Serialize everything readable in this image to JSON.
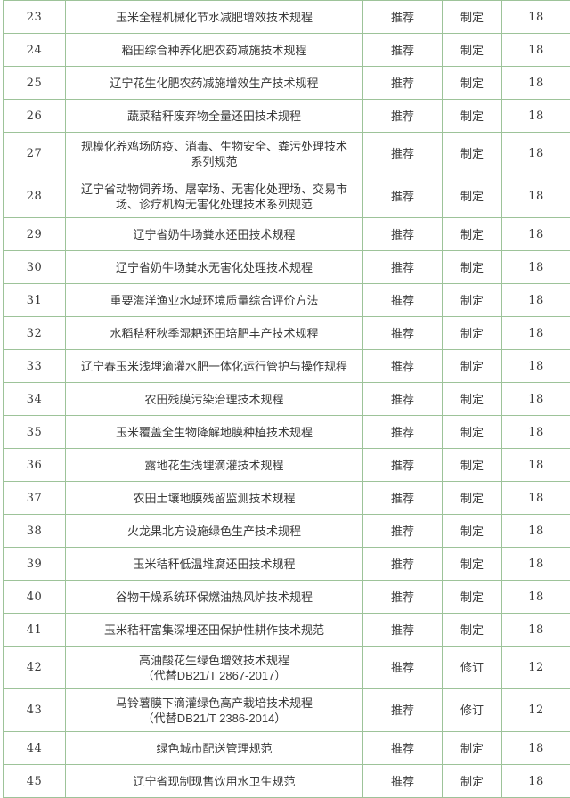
{
  "colors": {
    "border": "#9dc399",
    "text": "#3a3a3a",
    "background": "#ffffff",
    "cell_background": "#ffffff"
  },
  "table": {
    "rows": [
      {
        "index": "23",
        "title": "玉米全程机械化节水减肥增效技术规程",
        "attribute": "推荐",
        "type": "制定",
        "cycle": "18",
        "lines": 1
      },
      {
        "index": "24",
        "title": "稻田综合种养化肥农药减施技术规程",
        "attribute": "推荐",
        "type": "制定",
        "cycle": "18",
        "lines": 1
      },
      {
        "index": "25",
        "title": "辽宁花生化肥农药减施增效生产技术规程",
        "attribute": "推荐",
        "type": "制定",
        "cycle": "18",
        "lines": 1
      },
      {
        "index": "26",
        "title": "蔬菜秸秆废弃物全量还田技术规程",
        "attribute": "推荐",
        "type": "制定",
        "cycle": "18",
        "lines": 1
      },
      {
        "index": "27",
        "title": "规模化养鸡场防疫、消毒、生物安全、粪污处理技术\n系列规范",
        "attribute": "推荐",
        "type": "制定",
        "cycle": "18",
        "lines": 2
      },
      {
        "index": "28",
        "title": "辽宁省动物饲养场、屠宰场、无害化处理场、交易市\n场、诊疗机构无害化处理技术系列规范",
        "attribute": "推荐",
        "type": "制定",
        "cycle": "18",
        "lines": 2
      },
      {
        "index": "29",
        "title": "辽宁省奶牛场粪水还田技术规程",
        "attribute": "推荐",
        "type": "制定",
        "cycle": "18",
        "lines": 1
      },
      {
        "index": "30",
        "title": "辽宁省奶牛场粪水无害化处理技术规程",
        "attribute": "推荐",
        "type": "制定",
        "cycle": "18",
        "lines": 1
      },
      {
        "index": "31",
        "title": "重要海洋渔业水域环境质量综合评价方法",
        "attribute": "推荐",
        "type": "制定",
        "cycle": "18",
        "lines": 1
      },
      {
        "index": "32",
        "title": "水稻秸秆秋季湿耙还田培肥丰产技术规程",
        "attribute": "推荐",
        "type": "制定",
        "cycle": "18",
        "lines": 1
      },
      {
        "index": "33",
        "title": "辽宁春玉米浅埋滴灌水肥一体化运行管护与操作规程",
        "attribute": "推荐",
        "type": "制定",
        "cycle": "18",
        "lines": 1
      },
      {
        "index": "34",
        "title": "农田残膜污染治理技术规程",
        "attribute": "推荐",
        "type": "制定",
        "cycle": "18",
        "lines": 1
      },
      {
        "index": "35",
        "title": "玉米覆盖全生物降解地膜种植技术规程",
        "attribute": "推荐",
        "type": "制定",
        "cycle": "18",
        "lines": 1
      },
      {
        "index": "36",
        "title": "露地花生浅埋滴灌技术规程",
        "attribute": "推荐",
        "type": "制定",
        "cycle": "18",
        "lines": 1
      },
      {
        "index": "37",
        "title": "农田土壤地膜残留监测技术规程",
        "attribute": "推荐",
        "type": "制定",
        "cycle": "18",
        "lines": 1
      },
      {
        "index": "38",
        "title": "火龙果北方设施绿色生产技术规程",
        "attribute": "推荐",
        "type": "制定",
        "cycle": "18",
        "lines": 1
      },
      {
        "index": "39",
        "title": "玉米秸秆低温堆腐还田技术规程",
        "attribute": "推荐",
        "type": "制定",
        "cycle": "18",
        "lines": 1
      },
      {
        "index": "40",
        "title": "谷物干燥系统环保燃油热风炉技术规程",
        "attribute": "推荐",
        "type": "制定",
        "cycle": "18",
        "lines": 1
      },
      {
        "index": "41",
        "title": "玉米秸秆富集深埋还田保护性耕作技术规范",
        "attribute": "推荐",
        "type": "制定",
        "cycle": "18",
        "lines": 1
      },
      {
        "index": "42",
        "title": "高油酸花生绿色增效技术规程\n（代替DB21/T 2867-2017）",
        "attribute": "推荐",
        "type": "修订",
        "cycle": "12",
        "lines": 2
      },
      {
        "index": "43",
        "title": "马铃薯膜下滴灌绿色高产栽培技术规程\n（代替DB21/T 2386-2014）",
        "attribute": "推荐",
        "type": "修订",
        "cycle": "12",
        "lines": 2
      },
      {
        "index": "44",
        "title": "绿色城市配送管理规范",
        "attribute": "推荐",
        "type": "制定",
        "cycle": "18",
        "lines": 1
      },
      {
        "index": "45",
        "title": "辽宁省现制现售饮用水卫生规范",
        "attribute": "推荐",
        "type": "制定",
        "cycle": "18",
        "lines": 1
      }
    ]
  }
}
